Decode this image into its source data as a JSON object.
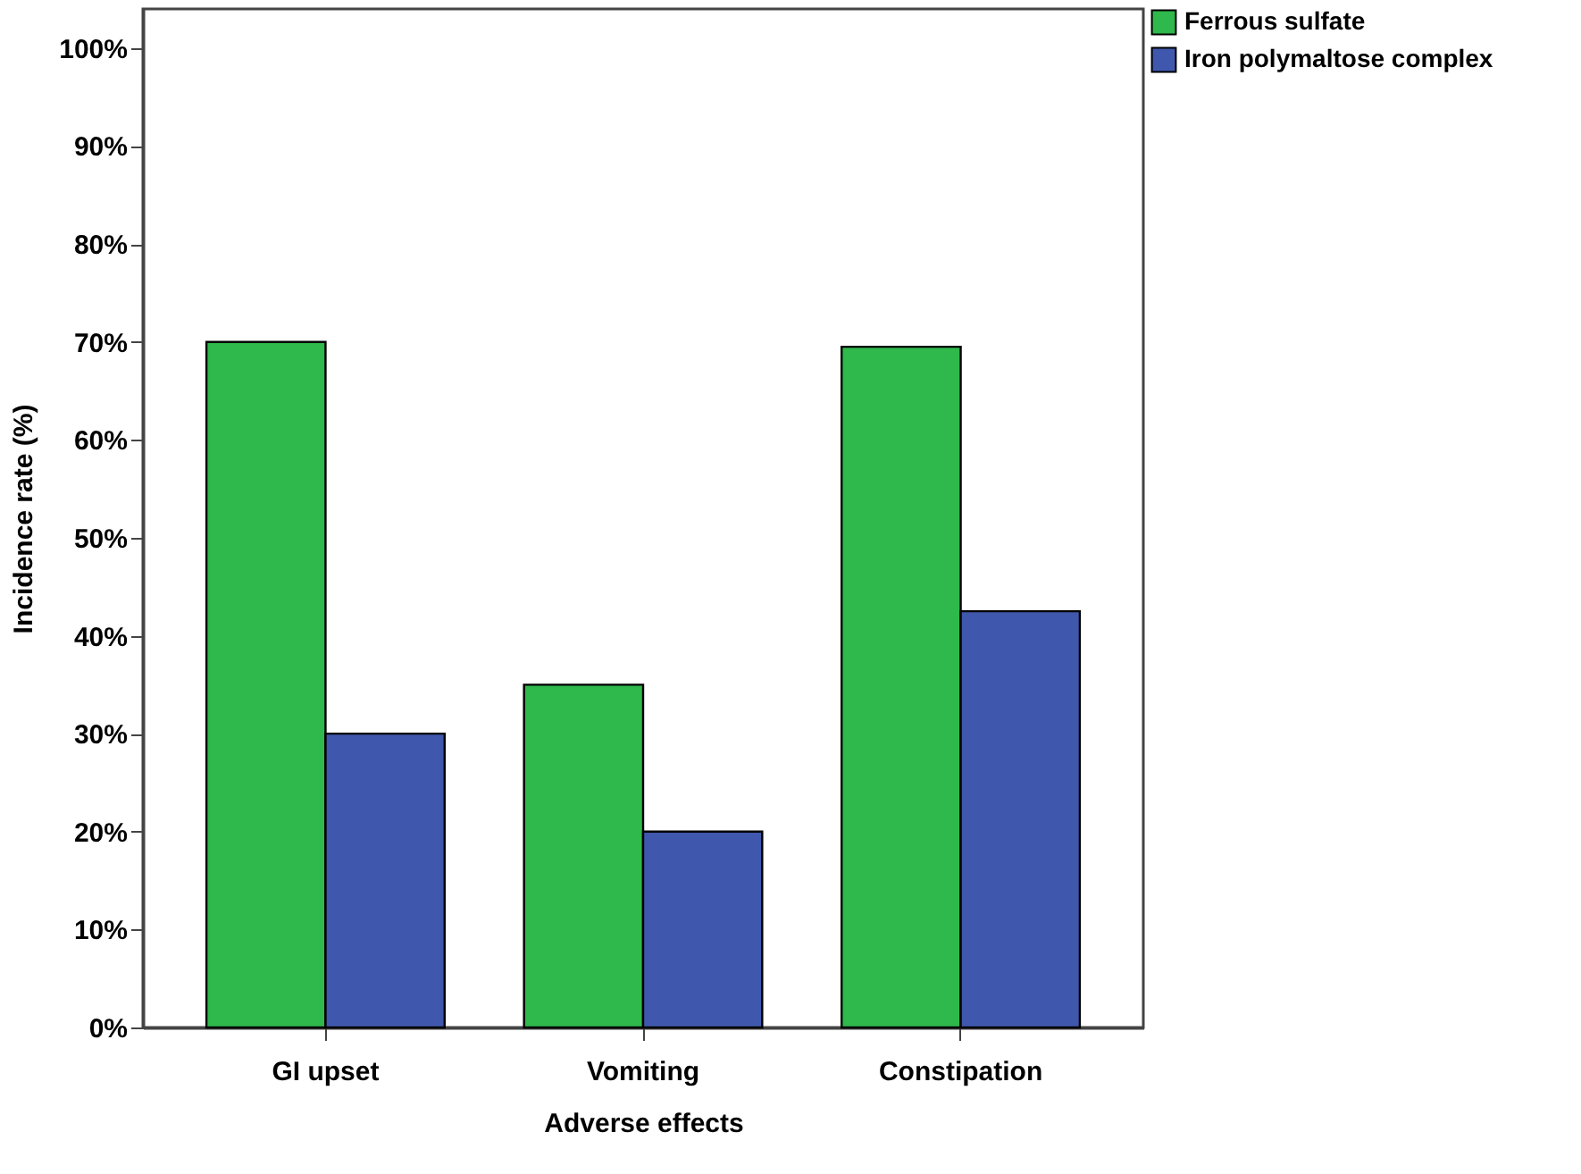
{
  "chart_data": {
    "type": "bar",
    "xlabel": "Adverse effects",
    "ylabel": "Incidence rate (%)",
    "categories": [
      "GI upset",
      "Vomiting",
      "Constipation"
    ],
    "series": [
      {
        "name": "Ferrous sulfate",
        "color": "#2fb84b",
        "values": [
          70,
          35,
          69.5
        ]
      },
      {
        "name": "Iron polymaltose complex",
        "color": "#3f58ad",
        "values": [
          30,
          20,
          42.5
        ]
      }
    ],
    "ylim": [
      0,
      104
    ],
    "yticks": [
      {
        "value": 0,
        "label": "0%"
      },
      {
        "value": 10,
        "label": "10%"
      },
      {
        "value": 20,
        "label": "20%"
      },
      {
        "value": 30,
        "label": "30%"
      },
      {
        "value": 40,
        "label": "40%"
      },
      {
        "value": 50,
        "label": "50%"
      },
      {
        "value": 60,
        "label": "60%"
      },
      {
        "value": 70,
        "label": "70%"
      },
      {
        "value": 80,
        "label": "80%"
      },
      {
        "value": 90,
        "label": "90%"
      },
      {
        "value": 100,
        "label": "100%"
      }
    ],
    "grid": false,
    "legend": "top right"
  }
}
